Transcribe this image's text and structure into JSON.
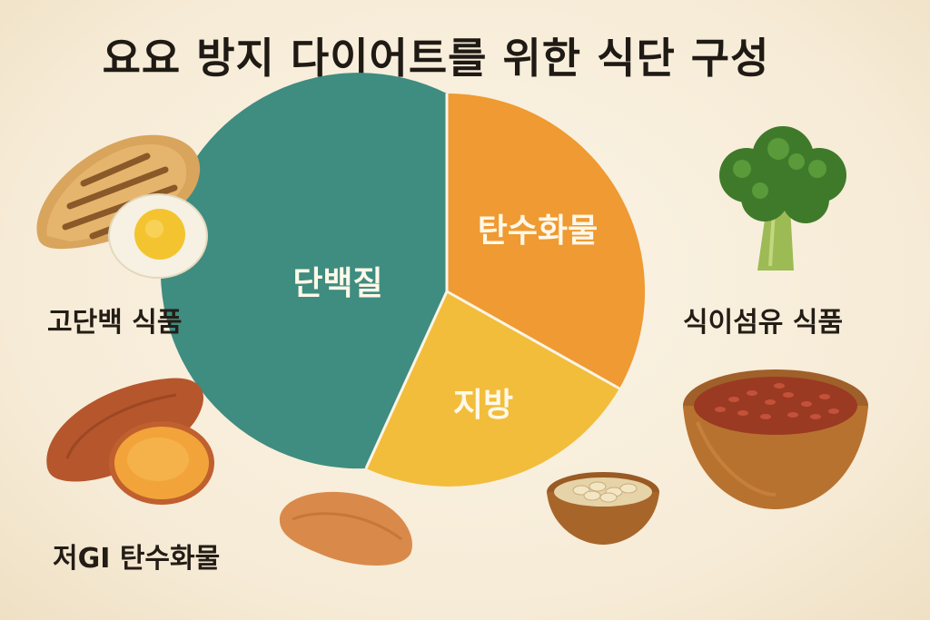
{
  "title": "요요 방지 다이어트를 위한 식단 구성",
  "labels": {
    "protein_foods": "고단백 식품",
    "low_gi_carbs": "저GI 탄수화물",
    "fiber_foods": "식이섬유 식품"
  },
  "pie": {
    "slices": [
      {
        "name": "단백질",
        "color": "#3f8c80"
      },
      {
        "name": "탄수화물",
        "color": "#ef9a32"
      },
      {
        "name": "지방",
        "color": "#f2bd3b"
      }
    ]
  },
  "icons": [
    "grilled-chicken-icon",
    "boiled-egg-icon",
    "sweet-potato-icon",
    "broccoli-icon",
    "red-rice-bowl-icon",
    "oats-bowl-icon"
  ]
}
